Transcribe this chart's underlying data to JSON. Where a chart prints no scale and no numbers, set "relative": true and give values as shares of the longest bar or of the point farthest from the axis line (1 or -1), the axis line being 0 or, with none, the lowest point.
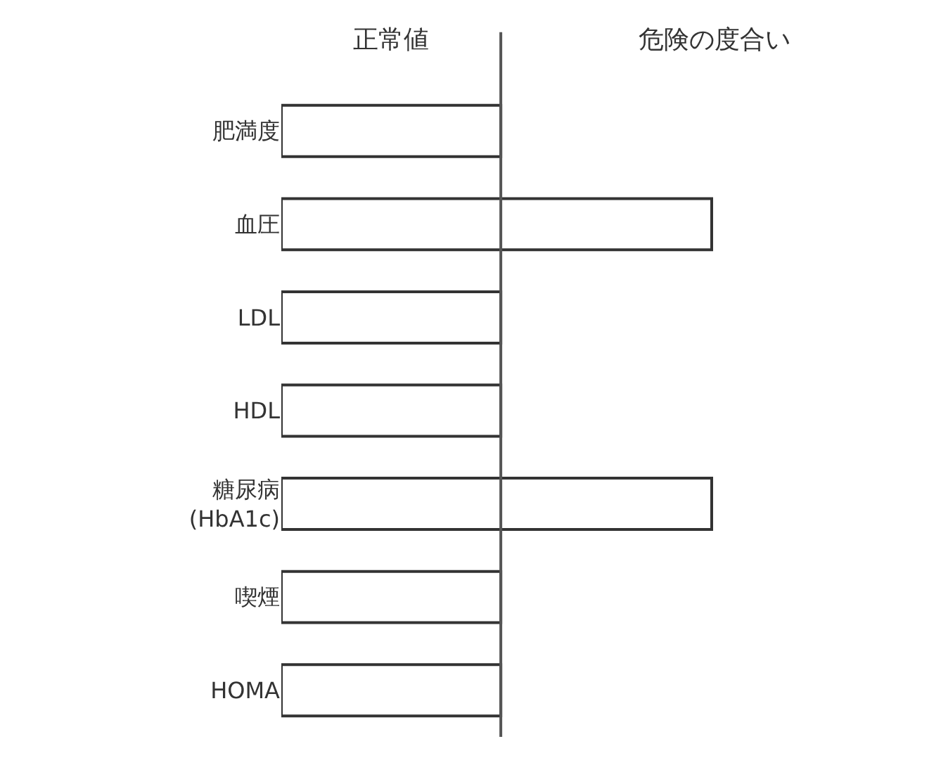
{
  "chart_data": {
    "type": "bar",
    "orientation": "horizontal",
    "relative": true,
    "categories": [
      "肥満度",
      "血圧",
      "LDL",
      "HDL",
      "糖尿病 (HbA1c)",
      "喫煙",
      "HOMA"
    ],
    "values": [
      0.51,
      1,
      0.51,
      0.51,
      1,
      0.51,
      0.51
    ],
    "color": "#ffffff",
    "ref_lines": [
      {
        "axis": "x",
        "value": 0.51,
        "color": "#555555"
      }
    ],
    "annotations": [
      "正常値",
      "危険の度合い"
    ]
  }
}
